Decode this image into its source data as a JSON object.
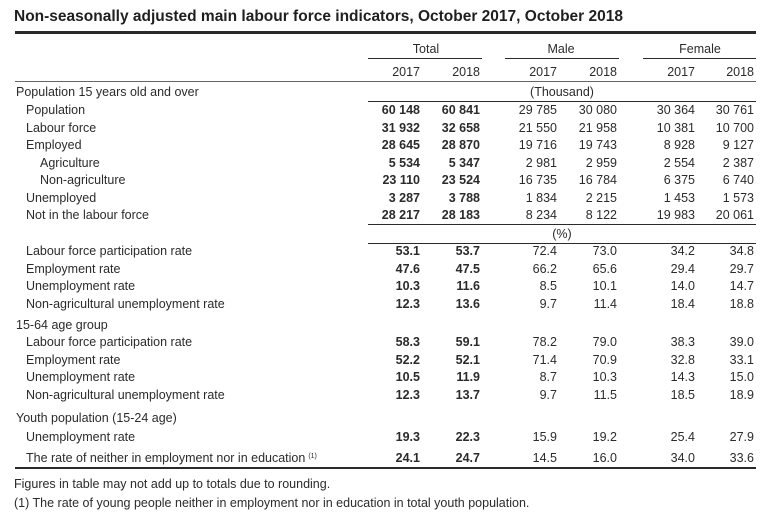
{
  "title": "Non-seasonally adjusted main labour force indicators, October 2017, October 2018",
  "header": {
    "groups": [
      "Total",
      "Male",
      "Female"
    ],
    "years": [
      "2017",
      "2018",
      "2017",
      "2018",
      "2017",
      "2018"
    ],
    "unit_thousand": "(Thousand)",
    "unit_percent": "(%)"
  },
  "sections": {
    "pop15": {
      "heading": "Population 15 years old and over",
      "rows": [
        {
          "label": "Population",
          "values": [
            "60 148",
            "60 841",
            "29 785",
            "30 080",
            "30 364",
            "30 761"
          ]
        },
        {
          "label": "Labour force",
          "values": [
            "31 932",
            "32 658",
            "21 550",
            "21 958",
            "10 381",
            "10 700"
          ]
        },
        {
          "label": "Employed",
          "values": [
            "28 645",
            "28 870",
            "19 716",
            "19 743",
            "8 928",
            "9 127"
          ]
        },
        {
          "label": "Agriculture",
          "values": [
            "5 534",
            "5 347",
            "2 981",
            "2 959",
            "2 554",
            "2 387"
          ]
        },
        {
          "label": "Non-agriculture",
          "values": [
            "23 110",
            "23 524",
            "16 735",
            "16 784",
            "6 375",
            "6 740"
          ]
        },
        {
          "label": "Unemployed",
          "values": [
            "3 287",
            "3 788",
            "1 834",
            "2 215",
            "1 453",
            "1 573"
          ]
        },
        {
          "label": "Not in the labour force",
          "values": [
            "28 217",
            "28 183",
            "8 234",
            "8 122",
            "19 983",
            "20 061"
          ]
        }
      ],
      "rates": [
        {
          "label": "Labour force participation rate",
          "values": [
            "53.1",
            "53.7",
            "72.4",
            "73.0",
            "34.2",
            "34.8"
          ]
        },
        {
          "label": "Employment rate",
          "values": [
            "47.6",
            "47.5",
            "66.2",
            "65.6",
            "29.4",
            "29.7"
          ]
        },
        {
          "label": "Unemployment rate",
          "values": [
            "10.3",
            "11.6",
            "8.5",
            "10.1",
            "14.0",
            "14.7"
          ]
        },
        {
          "label": "Non-agricultural unemployment rate",
          "values": [
            "12.3",
            "13.6",
            "9.7",
            "11.4",
            "18.4",
            "18.8"
          ]
        }
      ]
    },
    "age1564": {
      "heading": "15-64 age group",
      "rows": [
        {
          "label": "Labour force participation rate",
          "values": [
            "58.3",
            "59.1",
            "78.2",
            "79.0",
            "38.3",
            "39.0"
          ]
        },
        {
          "label": "Employment rate",
          "values": [
            "52.2",
            "52.1",
            "71.4",
            "70.9",
            "32.8",
            "33.1"
          ]
        },
        {
          "label": "Unemployment rate",
          "values": [
            "10.5",
            "11.9",
            "8.7",
            "10.3",
            "14.3",
            "15.0"
          ]
        },
        {
          "label": "Non-agricultural unemployment rate",
          "values": [
            "12.3",
            "13.7",
            "9.7",
            "11.5",
            "18.5",
            "18.9"
          ]
        }
      ]
    },
    "youth": {
      "heading": "Youth population (15-24 age)",
      "rows": [
        {
          "label": "Unemployment rate",
          "values": [
            "19.3",
            "22.3",
            "15.9",
            "19.2",
            "25.4",
            "27.9"
          ]
        },
        {
          "label": "The rate of neither in employment nor in education",
          "sup": "(1)",
          "values": [
            "24.1",
            "24.7",
            "14.5",
            "16.0",
            "34.0",
            "33.6"
          ]
        }
      ]
    }
  },
  "footnotes": [
    "Figures in table may not add up to totals due to rounding.",
    "(1) The rate of young people neither in employment nor in education in total youth population."
  ]
}
